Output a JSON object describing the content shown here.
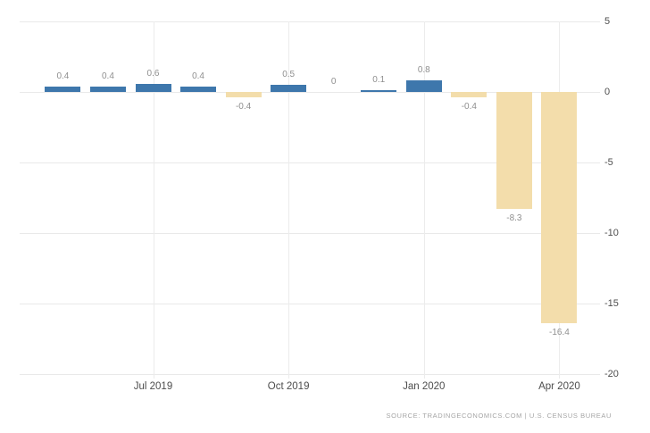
{
  "chart_data": {
    "type": "bar",
    "title": "",
    "values": [
      0.4,
      0.4,
      0.6,
      0.4,
      -0.4,
      0.5,
      0,
      0.1,
      0.8,
      -0.4,
      -8.3,
      -16.4
    ],
    "bar_labels": [
      "0.4",
      "0.4",
      "0.6",
      "0.4",
      "-0.4",
      "0.5",
      "0",
      "0.1",
      "0.8",
      "-0.4",
      "-8.3",
      "-16.4"
    ],
    "x_tick_labels": [
      {
        "label": "Jul 2019",
        "bar_index": 2
      },
      {
        "label": "Oct 2019",
        "bar_index": 5
      },
      {
        "label": "Jan 2020",
        "bar_index": 8
      },
      {
        "label": "Apr 2020",
        "bar_index": 11
      }
    ],
    "y_ticks": [
      5,
      0,
      -5,
      -10,
      -15,
      -20
    ],
    "ylim": [
      -20,
      5
    ],
    "grid": true,
    "legend": "none",
    "colors": {
      "positive_bar": "#3e77ac",
      "negative_bar": "#f3ddab",
      "gridline": "#e9e9e9",
      "value_label": "#8f8f8f",
      "axis_label": "#4d4d4d",
      "source_text": "#a5a5a5",
      "background": "#ffffff"
    }
  },
  "source": {
    "text": "SOURCE:  TRADINGECONOMICS.COM  |  U.S. CENSUS BUREAU"
  }
}
